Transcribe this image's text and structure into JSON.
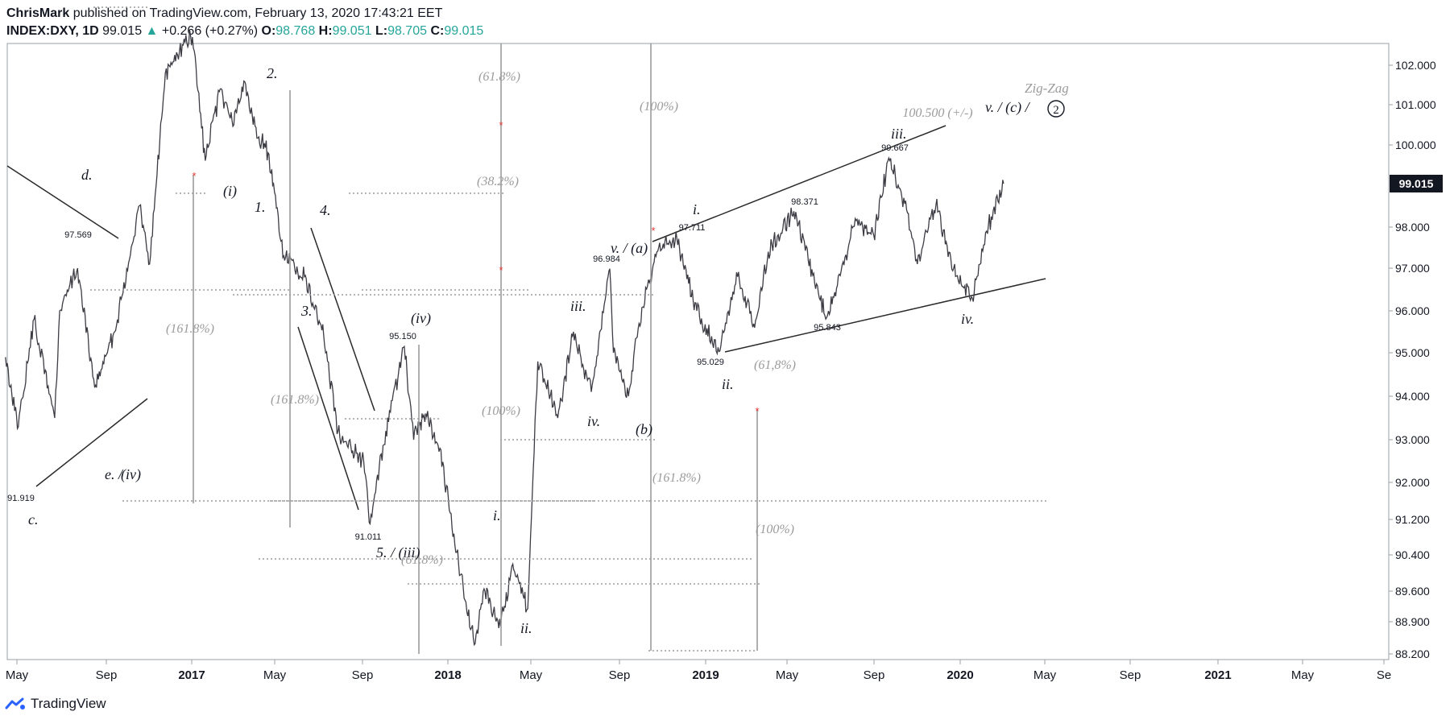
{
  "header": {
    "author": "ChrisMark",
    "published_text": "published on TradingView.com, February 13, 2020 17:43:21 EET",
    "symbol": "INDEX:DXY, 1D",
    "last": "99.015",
    "change": "+0.266 (+0.27%)",
    "o_label": "O:",
    "o": "98.768",
    "h_label": "H:",
    "h": "99.051",
    "l_label": "L:",
    "l": "98.705",
    "c_label": "C:",
    "c": "99.015"
  },
  "footer": {
    "brand": "TradingView"
  },
  "colors": {
    "price": "#3c3c44",
    "annotation": "#9b9b9b",
    "star": "#e53935",
    "badge": "#131722"
  },
  "chart_data": {
    "type": "line",
    "title": "INDEX:DXY, 1D",
    "y_tick_labels": [
      "102.000",
      "101.000",
      "100.000",
      "99.015",
      "98.000",
      "97.000",
      "96.000",
      "95.000",
      "94.000",
      "93.000",
      "92.000",
      "91.200",
      "90.400",
      "89.600",
      "88.900",
      "88.200"
    ],
    "x_tick_labels": [
      "May",
      "Sep",
      "2017",
      "May",
      "Sep",
      "2018",
      "May",
      "Sep",
      "2019",
      "May",
      "Sep",
      "2020",
      "May",
      "Sep",
      "2021",
      "May",
      "Se"
    ],
    "last_price": 99.015,
    "grid": false,
    "series": [
      {
        "name": "INDEX:DXY, 1D",
        "x": [
          "2016-04-15",
          "2016-05-03",
          "2016-05-25",
          "2016-06-23",
          "2016-06-30",
          "2016-07-25",
          "2016-08-18",
          "2016-09-15",
          "2016-10-20",
          "2016-11-03",
          "2016-11-25",
          "2016-12-20",
          "2017-01-02",
          "2017-01-20",
          "2017-02-10",
          "2017-03-01",
          "2017-03-15",
          "2017-04-05",
          "2017-04-18",
          "2017-05-10",
          "2017-06-08",
          "2017-07-05",
          "2017-07-25",
          "2017-08-30",
          "2017-09-08",
          "2017-09-30",
          "2017-10-26",
          "2017-11-08",
          "2017-11-25",
          "2017-12-15",
          "2018-01-10",
          "2018-02-01",
          "2018-02-16",
          "2018-03-10",
          "2018-03-27",
          "2018-04-17",
          "2018-05-01",
          "2018-05-29",
          "2018-06-20",
          "2018-07-15",
          "2018-08-10",
          "2018-08-15",
          "2018-09-05",
          "2018-09-20",
          "2018-10-15",
          "2018-11-12",
          "2018-12-10",
          "2019-01-10",
          "2019-02-05",
          "2019-03-01",
          "2019-03-20",
          "2019-04-25",
          "2019-05-15",
          "2019-06-10",
          "2019-06-25",
          "2019-07-20",
          "2019-08-15",
          "2019-09-05",
          "2019-09-30",
          "2019-10-15",
          "2019-11-10",
          "2019-12-05",
          "2019-12-31",
          "2020-01-20",
          "2020-02-13"
        ],
        "values": [
          94.9,
          93.3,
          95.8,
          93.5,
          96.0,
          97.0,
          94.2,
          95.5,
          98.5,
          97.1,
          101.8,
          102.5,
          102.7,
          99.6,
          101.4,
          100.5,
          101.6,
          100.2,
          99.8,
          97.3,
          96.8,
          95.4,
          93.2,
          92.5,
          91.1,
          93.2,
          95.15,
          93.0,
          93.6,
          92.8,
          90.2,
          88.4,
          89.6,
          88.8,
          90.2,
          89.2,
          94.8,
          93.5,
          95.5,
          94.1,
          96.984,
          95.0,
          94.0,
          95.7,
          97.4,
          97.711,
          96.0,
          95.029,
          96.8,
          95.6,
          97.4,
          98.371,
          97.2,
          95.843,
          96.6,
          98.2,
          97.8,
          99.667,
          98.4,
          97.1,
          98.5,
          97.0,
          96.3,
          97.9,
          99.015
        ]
      }
    ],
    "annotations": {
      "wave_labels": [
        "Zig-Zag",
        "v. / (c) /",
        "2",
        "iii.",
        "i.",
        "v. / (a)",
        "iii.",
        "iv.",
        "(b)",
        "ii.",
        "iv.",
        "i.",
        "ii.",
        "(iv)",
        "5. / (iii)",
        "3.",
        "4.",
        "1.",
        "2.",
        "(i)",
        "d.",
        "e. /",
        "(iv)",
        "c."
      ],
      "price_labels": [
        "99.667",
        "98.371",
        "97.711",
        "96.984",
        "95.029",
        "95.843",
        "97.569",
        "91.919",
        "95.150",
        "91.011"
      ],
      "fib_labels": [
        "(61.8%)",
        "(38.2%)",
        "(100%)",
        "(100%)",
        "(161.8%)",
        "(161.8%)",
        "(161.8%)",
        "(61,8%)",
        "(100%)",
        "(61.8%)",
        "100.500 (+/-)"
      ]
    }
  }
}
